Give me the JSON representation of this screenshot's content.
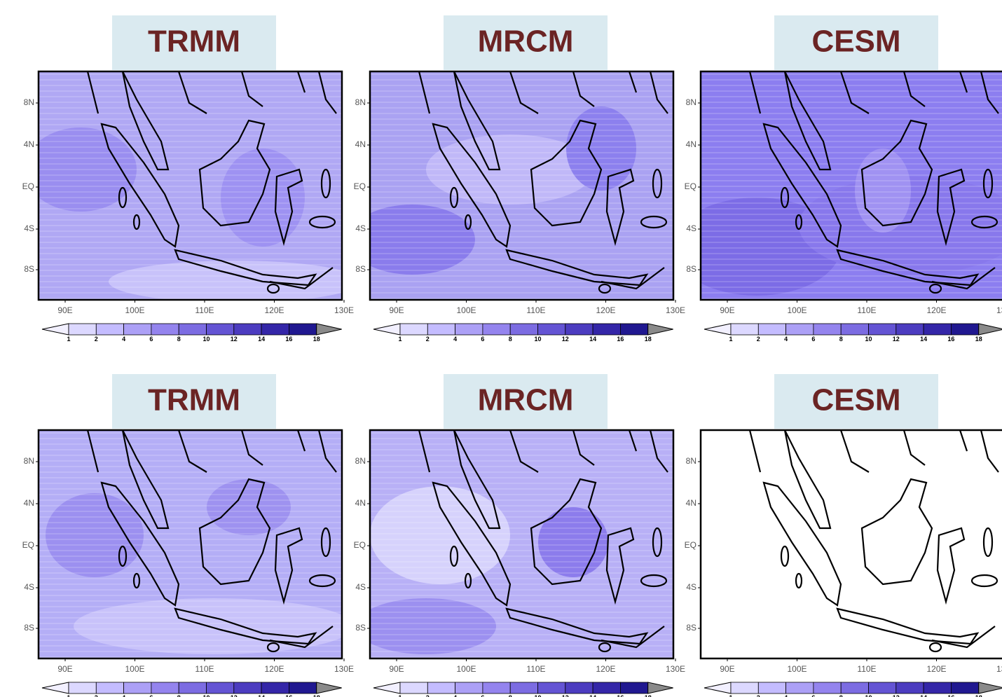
{
  "panels": [
    {
      "title": "TRMM"
    },
    {
      "title": "MRCM"
    },
    {
      "title": "CESM"
    },
    {
      "title": "TRMM"
    },
    {
      "title": "MRCM"
    },
    {
      "title": "CESM"
    }
  ],
  "lat_labels": [
    "8N",
    "4N",
    "EQ",
    "4S",
    "8S"
  ],
  "lon_labels": [
    "90E",
    "100E",
    "110E",
    "120E",
    "130E"
  ],
  "colorbar": {
    "levels": [
      "1",
      "2",
      "4",
      "6",
      "8",
      "10",
      "12",
      "14",
      "16",
      "18"
    ],
    "colors": [
      "#f2f0ff",
      "#dcd8ff",
      "#c4bcff",
      "#aca0f6",
      "#9484ee",
      "#7c6ce2",
      "#6454d4",
      "#4c3cc0",
      "#3426a8",
      "#201890",
      "#8a8a8a"
    ]
  }
}
